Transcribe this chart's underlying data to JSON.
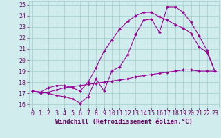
{
  "xlabel": "Windchill (Refroidissement éolien,°C)",
  "bg_color": "#d0ecec",
  "line_color": "#990099",
  "xlim": [
    -0.5,
    23.5
  ],
  "ylim": [
    15.7,
    25.3
  ],
  "yticks": [
    16,
    17,
    18,
    19,
    20,
    21,
    22,
    23,
    24,
    25
  ],
  "xticks": [
    0,
    1,
    2,
    3,
    4,
    5,
    6,
    7,
    8,
    9,
    10,
    11,
    12,
    13,
    14,
    15,
    16,
    17,
    18,
    19,
    20,
    21,
    22,
    23
  ],
  "line1_x": [
    0,
    1,
    2,
    3,
    4,
    5,
    6,
    7,
    8,
    9,
    10,
    11,
    12,
    13,
    14,
    15,
    16,
    17,
    18,
    19,
    20,
    21,
    22,
    23
  ],
  "line1_y": [
    17.2,
    17.1,
    17.0,
    16.8,
    16.7,
    16.5,
    16.1,
    16.7,
    18.3,
    17.2,
    19.0,
    19.4,
    20.5,
    22.3,
    23.6,
    23.7,
    22.5,
    24.8,
    24.8,
    24.3,
    23.4,
    22.2,
    20.9,
    19.0
  ],
  "line2_x": [
    0,
    1,
    2,
    3,
    4,
    5,
    6,
    7,
    8,
    9,
    10,
    11,
    12,
    13,
    14,
    15,
    16,
    17,
    18,
    19,
    20,
    21,
    22,
    23
  ],
  "line2_y": [
    17.2,
    17.1,
    17.5,
    17.7,
    17.7,
    17.5,
    17.2,
    18.0,
    19.3,
    20.8,
    21.8,
    22.8,
    23.5,
    24.0,
    24.3,
    24.3,
    23.9,
    23.6,
    23.2,
    22.9,
    22.4,
    21.2,
    20.7,
    19.0
  ],
  "line3_x": [
    0,
    1,
    2,
    3,
    4,
    5,
    6,
    7,
    8,
    9,
    10,
    11,
    12,
    13,
    14,
    15,
    16,
    17,
    18,
    19,
    20,
    21,
    22,
    23
  ],
  "line3_y": [
    17.2,
    17.0,
    17.1,
    17.3,
    17.5,
    17.6,
    17.7,
    17.8,
    17.9,
    18.0,
    18.1,
    18.2,
    18.3,
    18.5,
    18.6,
    18.7,
    18.8,
    18.9,
    19.0,
    19.1,
    19.1,
    19.0,
    19.0,
    19.0
  ],
  "grid_color": "#a0cccc",
  "xlabel_fontsize": 6.5,
  "tick_fontsize": 6.0,
  "markersize": 2.0,
  "linewidth": 0.8
}
